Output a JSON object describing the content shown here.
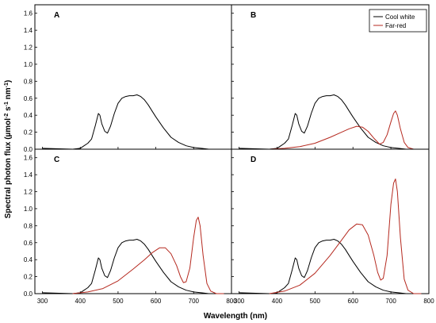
{
  "chart_data": {
    "type": "line",
    "xlabel": "Wavelength (nm)",
    "ylabel_parts": [
      "Spectral photon flux (µmol",
      "-2",
      " s",
      "-1",
      " nm",
      "-1",
      ")"
    ],
    "xlim": [
      280,
      800
    ],
    "ylim": [
      0,
      1.7
    ],
    "x_ticks": [
      300,
      400,
      500,
      600,
      700,
      800
    ],
    "x_tick_labels": [
      "300",
      "400",
      "500",
      "600",
      "700",
      "800"
    ],
    "y_ticks": [
      0.0,
      0.2,
      0.4,
      0.6,
      0.8,
      1.0,
      1.2,
      1.4,
      1.6
    ],
    "y_tick_labels": [
      "0.0",
      "0.2",
      "0.4",
      "0.6",
      "0.8",
      "1.0",
      "1.2",
      "1.4",
      "1.6"
    ],
    "grid": false,
    "legend": {
      "placement": "top-right of panel B",
      "entries": [
        "Cool white",
        "Far-red"
      ]
    },
    "colors": {
      "cool_white": "#000000",
      "far_red": "#b5291f"
    },
    "panels": [
      {
        "label": "A",
        "series": [
          {
            "name": "Cool white",
            "x": [
              300,
              380,
              400,
              410,
              420,
              430,
              440,
              448,
              452,
              457,
              465,
              472,
              480,
              490,
              500,
              510,
              520,
              530,
              540,
              550,
              560,
              570,
              580,
              590,
              600,
              620,
              640,
              660,
              680,
              700,
              720,
              740,
              760,
              780,
              800
            ],
            "y": [
              0.01,
              0,
              0.01,
              0.04,
              0.07,
              0.12,
              0.28,
              0.42,
              0.4,
              0.3,
              0.21,
              0.19,
              0.27,
              0.42,
              0.54,
              0.6,
              0.62,
              0.63,
              0.63,
              0.64,
              0.62,
              0.58,
              0.52,
              0.45,
              0.38,
              0.25,
              0.14,
              0.08,
              0.04,
              0.02,
              0.01,
              0,
              0,
              0,
              0
            ]
          }
        ]
      },
      {
        "label": "B",
        "series": [
          {
            "name": "Cool white",
            "x": [
              300,
              380,
              400,
              410,
              420,
              430,
              440,
              448,
              452,
              457,
              465,
              472,
              480,
              490,
              500,
              510,
              520,
              530,
              540,
              550,
              560,
              570,
              580,
              590,
              600,
              620,
              640,
              660,
              680,
              700,
              720,
              740,
              760,
              780,
              800
            ],
            "y": [
              0.01,
              0,
              0.01,
              0.04,
              0.07,
              0.12,
              0.28,
              0.42,
              0.4,
              0.3,
              0.21,
              0.19,
              0.27,
              0.42,
              0.54,
              0.6,
              0.62,
              0.63,
              0.63,
              0.64,
              0.62,
              0.58,
              0.52,
              0.45,
              0.38,
              0.25,
              0.14,
              0.08,
              0.04,
              0.02,
              0.01,
              0,
              0,
              0,
              0
            ]
          },
          {
            "name": "Far-red",
            "x": [
              380,
              420,
              460,
              500,
              540,
              570,
              590,
              610,
              625,
              640,
              655,
              670,
              680,
              690,
              700,
              707,
              712,
              717,
              725,
              735,
              745,
              760,
              780
            ],
            "y": [
              0,
              0.01,
              0.03,
              0.07,
              0.14,
              0.2,
              0.24,
              0.27,
              0.26,
              0.21,
              0.13,
              0.06,
              0.08,
              0.17,
              0.32,
              0.42,
              0.45,
              0.4,
              0.24,
              0.08,
              0.02,
              0,
              0
            ]
          }
        ]
      },
      {
        "label": "C",
        "series": [
          {
            "name": "Cool white",
            "x": [
              300,
              380,
              400,
              410,
              420,
              430,
              440,
              448,
              452,
              457,
              465,
              472,
              480,
              490,
              500,
              510,
              520,
              530,
              540,
              550,
              560,
              570,
              580,
              590,
              600,
              620,
              640,
              660,
              680,
              700,
              720,
              740,
              760,
              780,
              800
            ],
            "y": [
              0.01,
              0,
              0.01,
              0.04,
              0.07,
              0.12,
              0.28,
              0.42,
              0.4,
              0.3,
              0.21,
              0.19,
              0.27,
              0.42,
              0.54,
              0.6,
              0.62,
              0.63,
              0.63,
              0.64,
              0.62,
              0.58,
              0.52,
              0.45,
              0.38,
              0.25,
              0.14,
              0.08,
              0.04,
              0.02,
              0.01,
              0,
              0,
              0,
              0
            ]
          },
          {
            "name": "Far-red",
            "x": [
              380,
              420,
              460,
              500,
              540,
              570,
              590,
              610,
              625,
              640,
              655,
              665,
              673,
              680,
              690,
              700,
              707,
              712,
              717,
              725,
              735,
              745,
              760,
              780
            ],
            "y": [
              0,
              0.02,
              0.06,
              0.15,
              0.29,
              0.4,
              0.48,
              0.54,
              0.54,
              0.47,
              0.33,
              0.2,
              0.13,
              0.14,
              0.3,
              0.66,
              0.86,
              0.9,
              0.8,
              0.45,
              0.12,
              0.03,
              0,
              0
            ]
          }
        ]
      },
      {
        "label": "D",
        "series": [
          {
            "name": "Cool white",
            "x": [
              300,
              380,
              400,
              410,
              420,
              430,
              440,
              448,
              452,
              457,
              465,
              472,
              480,
              490,
              500,
              510,
              520,
              530,
              540,
              550,
              560,
              570,
              580,
              590,
              600,
              620,
              640,
              660,
              680,
              700,
              720,
              740,
              760,
              780,
              800
            ],
            "y": [
              0.01,
              0,
              0.01,
              0.04,
              0.07,
              0.12,
              0.28,
              0.42,
              0.4,
              0.3,
              0.21,
              0.19,
              0.27,
              0.42,
              0.54,
              0.6,
              0.62,
              0.63,
              0.63,
              0.64,
              0.62,
              0.58,
              0.52,
              0.45,
              0.38,
              0.25,
              0.14,
              0.08,
              0.04,
              0.02,
              0.01,
              0,
              0,
              0,
              0
            ]
          },
          {
            "name": "Far-red",
            "x": [
              380,
              420,
              460,
              500,
              540,
              570,
              590,
              610,
              625,
              640,
              655,
              665,
              673,
              680,
              690,
              700,
              707,
              712,
              717,
              725,
              735,
              745,
              760,
              780
            ],
            "y": [
              0,
              0.03,
              0.1,
              0.24,
              0.45,
              0.63,
              0.75,
              0.82,
              0.81,
              0.69,
              0.45,
              0.25,
              0.16,
              0.18,
              0.45,
              1.05,
              1.3,
              1.35,
              1.2,
              0.66,
              0.17,
              0.04,
              0,
              0
            ]
          }
        ]
      }
    ]
  }
}
